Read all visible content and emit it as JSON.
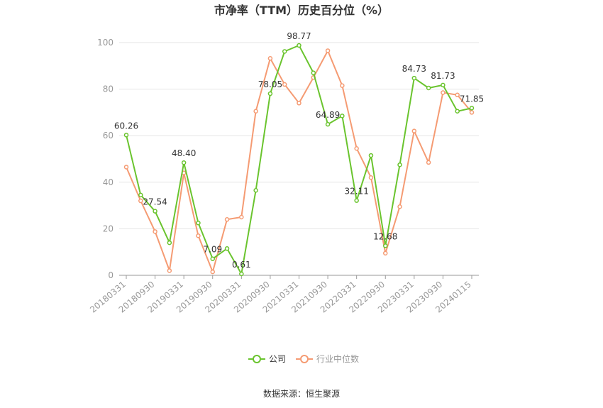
{
  "chart_data": {
    "type": "line",
    "title": "市净率（TTM）历史百分位（%）",
    "source": "数据来源：恒生聚源",
    "x_tick_labels": [
      "20180331",
      "20180930",
      "20190331",
      "20190930",
      "20200331",
      "20200930",
      "20210331",
      "20210930",
      "20220331",
      "20220930",
      "20230331",
      "20230930",
      "20240115"
    ],
    "ylim": [
      0,
      100
    ],
    "y_ticks": [
      0,
      20,
      40,
      60,
      80,
      100
    ],
    "grid": true,
    "legend_position": "bottom",
    "colors": {
      "company": "#6ac42e",
      "industry": "#f59b73"
    },
    "series": [
      {
        "name": "公司",
        "values": [
          60.26,
          34.5,
          27.54,
          14.0,
          48.4,
          22.5,
          7.09,
          11.5,
          0.61,
          36.5,
          78.05,
          96.2,
          98.77,
          87.0,
          64.89,
          68.5,
          32.11,
          51.5,
          12.68,
          47.5,
          84.73,
          80.5,
          81.73,
          70.5,
          71.85
        ]
      },
      {
        "name": "行业中位数",
        "values": [
          46.5,
          32.0,
          18.8,
          2.0,
          44.0,
          17.0,
          1.5,
          24.0,
          25.0,
          70.5,
          93.2,
          82.0,
          74.0,
          85.0,
          96.5,
          81.5,
          54.5,
          42.0,
          9.5,
          29.5,
          62.0,
          48.5,
          78.5,
          77.5,
          70.0
        ]
      }
    ],
    "data_labels": [
      {
        "index": 0,
        "text": "60.26"
      },
      {
        "index": 2,
        "text": "27.54"
      },
      {
        "index": 4,
        "text": "48.40"
      },
      {
        "index": 6,
        "text": "7.09"
      },
      {
        "index": 8,
        "text": "0.61"
      },
      {
        "index": 10,
        "text": "78.05"
      },
      {
        "index": 12,
        "text": "98.77"
      },
      {
        "index": 14,
        "text": "64.89"
      },
      {
        "index": 16,
        "text": "32.11"
      },
      {
        "index": 18,
        "text": "12.68"
      },
      {
        "index": 20,
        "text": "84.73"
      },
      {
        "index": 22,
        "text": "81.73"
      },
      {
        "index": 24,
        "text": "71.85"
      }
    ]
  }
}
